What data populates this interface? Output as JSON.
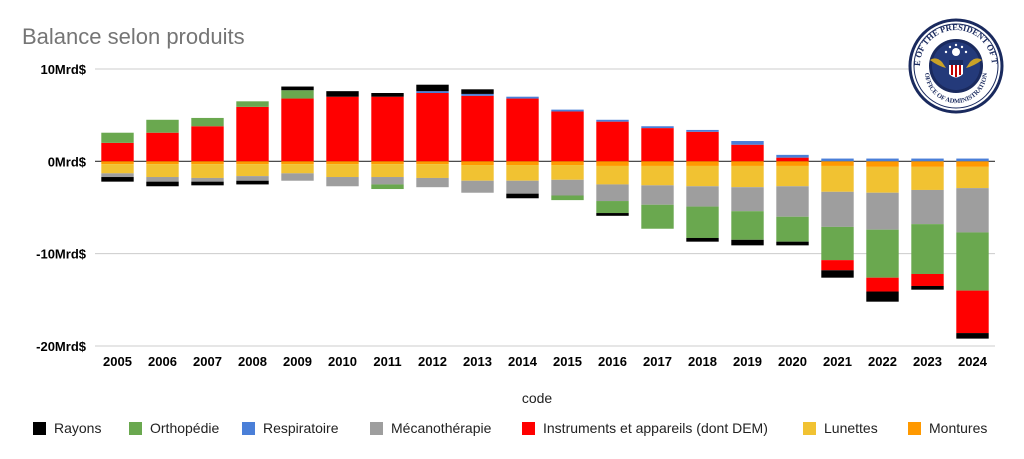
{
  "chart_data": {
    "type": "bar",
    "stacked": true,
    "title": "Balance selon produits",
    "xlabel": "code",
    "ylabel": "",
    "ylim": [
      -20,
      10
    ],
    "yticks": [
      {
        "value": 10,
        "label": "10Mrd$"
      },
      {
        "value": 0,
        "label": "0Mrd$"
      },
      {
        "value": -10,
        "label": "-10Mrd$"
      },
      {
        "value": -20,
        "label": "-20Mrd$"
      }
    ],
    "grid": true,
    "legend_position": "bottom",
    "categories": [
      "2005",
      "2006",
      "2007",
      "2008",
      "2009",
      "2010",
      "2011",
      "2012",
      "2013",
      "2014",
      "2015",
      "2016",
      "2017",
      "2018",
      "2019",
      "2020",
      "2021",
      "2022",
      "2023",
      "2024"
    ],
    "series": [
      {
        "name": "Rayons",
        "color": "#000000",
        "values": [
          -0.5,
          -0.5,
          -0.4,
          -0.4,
          0.4,
          0.6,
          0.4,
          0.7,
          0.5,
          -0.5,
          0.0,
          -0.3,
          0.0,
          -0.4,
          -0.6,
          -0.4,
          -0.8,
          -1.1,
          -0.4,
          -0.6
        ]
      },
      {
        "name": "Orthopédie",
        "color": "#6aa84f",
        "values": [
          1.1,
          1.4,
          0.9,
          0.6,
          0.9,
          0.0,
          -0.5,
          0.0,
          0.0,
          0.0,
          -0.5,
          -1.3,
          -2.6,
          -3.4,
          -3.1,
          -2.7,
          -3.6,
          -5.2,
          -5.4,
          -6.3
        ]
      },
      {
        "name": "Respiratoire",
        "color": "#4a7fd8",
        "values": [
          0.0,
          0.0,
          0.0,
          0.0,
          0.0,
          0.0,
          0.0,
          0.2,
          0.2,
          0.2,
          0.2,
          0.2,
          0.2,
          0.2,
          0.4,
          0.3,
          0.3,
          0.3,
          0.3,
          0.3
        ]
      },
      {
        "name": "Mécanothérapie",
        "color": "#9e9e9e",
        "values": [
          -0.4,
          -0.5,
          -0.4,
          -0.5,
          -0.8,
          -1.0,
          -0.8,
          -1.0,
          -1.3,
          -1.4,
          -1.7,
          -1.8,
          -2.1,
          -2.2,
          -2.6,
          -3.3,
          -3.8,
          -4.0,
          -3.7,
          -4.8
        ]
      },
      {
        "name": "Instruments et appareils (dont DEM)",
        "color": "#ff0000",
        "values": [
          2.0,
          3.1,
          3.8,
          5.9,
          6.8,
          7.0,
          7.0,
          7.4,
          7.1,
          6.8,
          5.4,
          4.3,
          3.6,
          3.2,
          1.8,
          0.4,
          -1.1,
          -1.5,
          -1.3,
          -4.6
        ]
      },
      {
        "name": "Lunettes",
        "color": "#f1c232",
        "values": [
          -1.0,
          -1.4,
          -1.5,
          -1.3,
          -1.0,
          -1.4,
          -1.4,
          -1.5,
          -1.7,
          -1.7,
          -1.6,
          -2.0,
          -2.1,
          -2.2,
          -2.3,
          -2.2,
          -2.8,
          -2.8,
          -2.5,
          -2.3
        ]
      },
      {
        "name": "Montures",
        "color": "#ff9900",
        "values": [
          -0.3,
          -0.3,
          -0.3,
          -0.3,
          -0.3,
          -0.3,
          -0.3,
          -0.3,
          -0.4,
          -0.4,
          -0.4,
          -0.5,
          -0.5,
          -0.5,
          -0.5,
          -0.5,
          -0.5,
          -0.6,
          -0.6,
          -0.6
        ]
      }
    ]
  },
  "seal": {
    "text_outer": "EXECUTIVE OFFICE OF THE PRESIDENT OF THE UNITED STATES",
    "text_inner": "OFFICE OF ADMINISTRATION"
  }
}
